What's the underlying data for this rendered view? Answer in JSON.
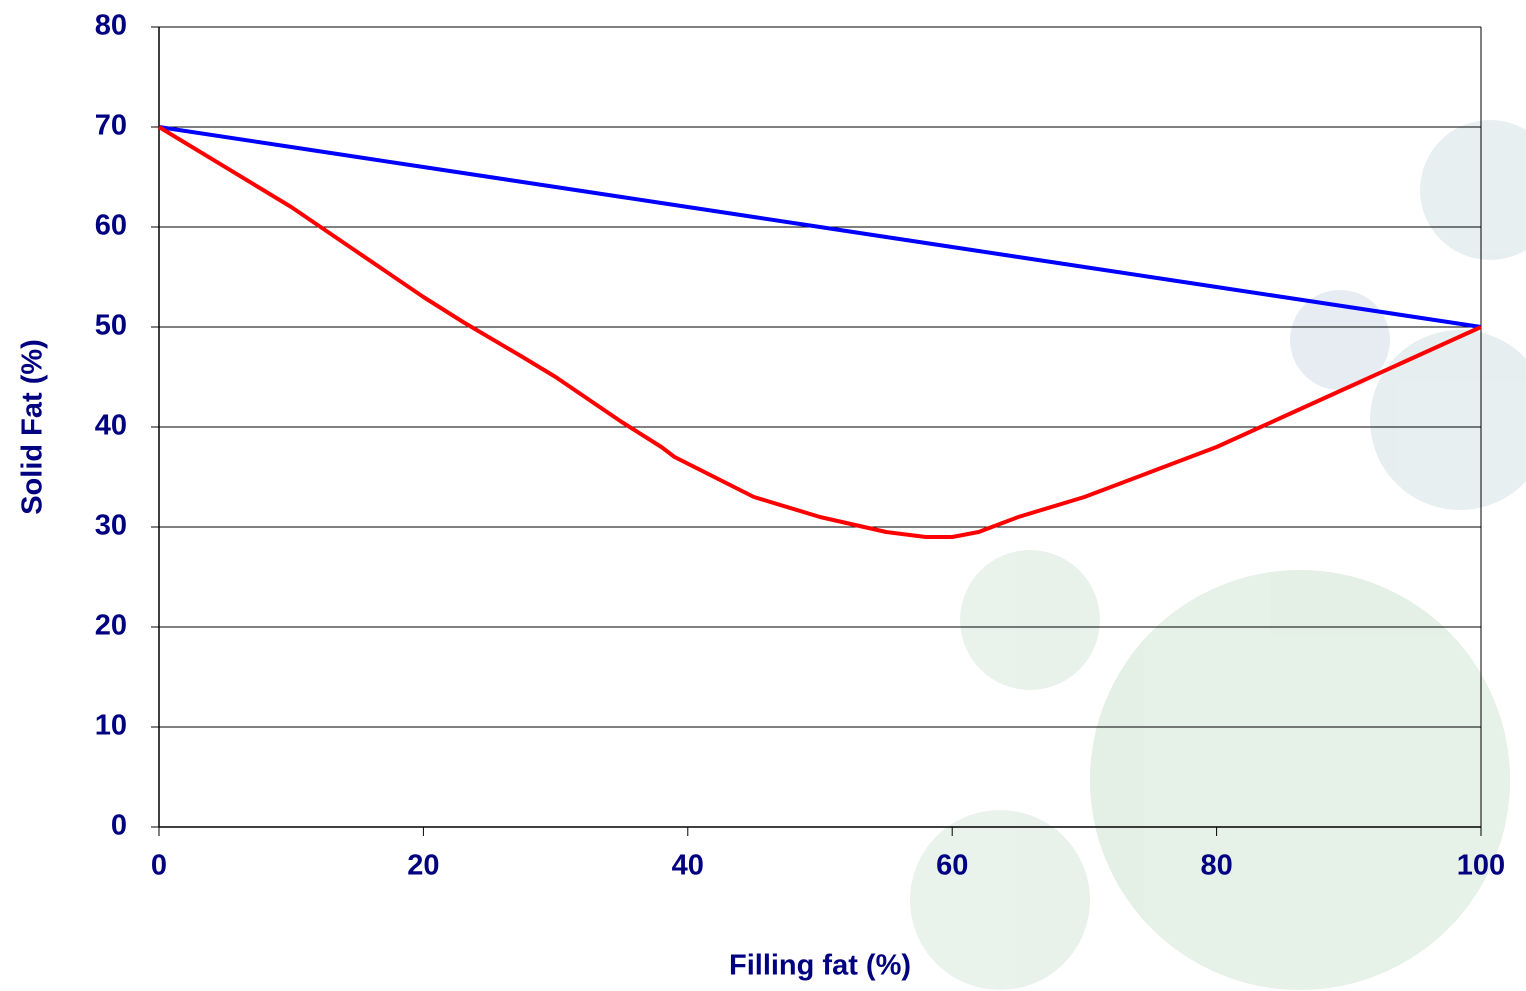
{
  "chart_data": {
    "type": "line",
    "x_label": "Filling fat (%)",
    "y_label": "Solid Fat (%)",
    "x": [
      0,
      10,
      15,
      20,
      23,
      27.5,
      30,
      35,
      38,
      39,
      45,
      50,
      55,
      58,
      60,
      62,
      65,
      70,
      75,
      80,
      85,
      90,
      95,
      100
    ],
    "series": [
      {
        "color": "#0000ff",
        "values": [
          70,
          68,
          67,
          66,
          65.4,
          64.5,
          64,
          63,
          62.4,
          62.2,
          61,
          60,
          59,
          58.4,
          58,
          57.6,
          57,
          56,
          55,
          54,
          53,
          52,
          51,
          50
        ]
      },
      {
        "color": "#ff0000",
        "values": [
          70,
          62,
          57.5,
          53,
          50.5,
          47,
          45,
          40.5,
          38,
          37,
          33,
          31,
          29.5,
          29,
          29,
          29.5,
          31,
          33,
          35.5,
          38,
          41,
          44,
          47,
          50
        ]
      }
    ],
    "xlim": [
      0,
      100
    ],
    "xticks": [
      0,
      20,
      40,
      60,
      80,
      100
    ],
    "ylim": [
      0,
      80
    ],
    "yticks": [
      0,
      10,
      20,
      30,
      40,
      50,
      60,
      70,
      80
    ],
    "grid": true
  }
}
